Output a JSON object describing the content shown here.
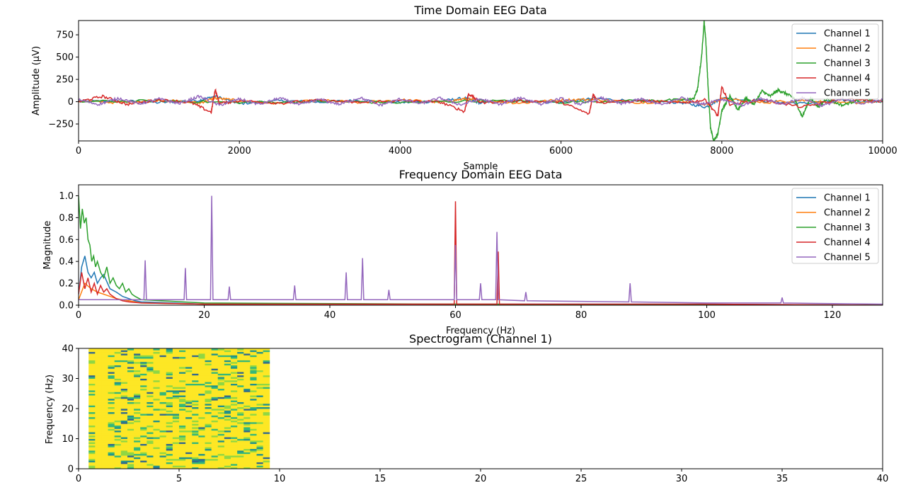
{
  "colors": {
    "channel_1": "#1f77b4",
    "channel_2": "#ff7f0e",
    "channel_3": "#2ca02c",
    "channel_4": "#d62728",
    "channel_5": "#9467bd"
  },
  "chart_data": [
    {
      "type": "line",
      "title": "Time Domain EEG Data",
      "xlabel": "Sample",
      "ylabel": "Amplitude (µV)",
      "xlim": [
        0,
        10000
      ],
      "ylim": [
        -440,
        910
      ],
      "xticks": [
        "0",
        "2000",
        "4000",
        "6000",
        "8000",
        "10000"
      ],
      "xtick_values": [
        0,
        2000,
        4000,
        6000,
        8000,
        10000
      ],
      "yticks": [
        "−250",
        "0",
        "250",
        "500",
        "750"
      ],
      "ytick_values": [
        -250,
        0,
        250,
        500,
        750
      ],
      "legend": "top-right",
      "series": [
        {
          "name": "Channel 1",
          "color": "#1f77b4",
          "x": [
            0,
            500,
            1000,
            1500,
            1700,
            2000,
            2500,
            3000,
            3500,
            4000,
            4500,
            4800,
            5000,
            5500,
            6000,
            6400,
            7000,
            7500,
            7800,
            8000,
            8500,
            9000,
            9500,
            10000
          ],
          "y": [
            0,
            10,
            -10,
            15,
            60,
            -20,
            10,
            -5,
            15,
            -10,
            5,
            40,
            -15,
            10,
            -10,
            35,
            5,
            -10,
            -60,
            40,
            10,
            -20,
            15,
            0
          ]
        },
        {
          "name": "Channel 2",
          "color": "#ff7f0e",
          "x": [
            0,
            500,
            1000,
            1500,
            1700,
            2000,
            2500,
            3000,
            3500,
            4000,
            4500,
            4800,
            5000,
            5500,
            6000,
            6400,
            7000,
            7500,
            7800,
            8000,
            8500,
            9000,
            9500,
            10000
          ],
          "y": [
            5,
            -10,
            20,
            -15,
            40,
            10,
            -20,
            15,
            -10,
            20,
            -5,
            30,
            10,
            -15,
            20,
            25,
            -10,
            15,
            -30,
            30,
            -10,
            15,
            -20,
            5
          ]
        },
        {
          "name": "Channel 3",
          "color": "#2ca02c",
          "x": [
            0,
            1000,
            2000,
            3000,
            4000,
            5000,
            6000,
            7000,
            7500,
            7650,
            7700,
            7750,
            7780,
            7800,
            7830,
            7860,
            7900,
            7950,
            8000,
            8100,
            8200,
            8300,
            8400,
            8500,
            8600,
            8700,
            8800,
            8900,
            9000,
            9100,
            9200,
            9300,
            9500,
            9700,
            10000
          ],
          "y": [
            0,
            10,
            -10,
            5,
            -10,
            10,
            -5,
            10,
            20,
            30,
            150,
            520,
            900,
            700,
            150,
            -300,
            -440,
            -360,
            -100,
            60,
            -90,
            40,
            -30,
            120,
            60,
            130,
            90,
            40,
            -170,
            40,
            -60,
            30,
            -40,
            20,
            0
          ]
        },
        {
          "name": "Channel 4",
          "color": "#d62728",
          "x": [
            0,
            300,
            600,
            1000,
            1400,
            1650,
            1700,
            1750,
            2000,
            2500,
            3000,
            3500,
            4000,
            4500,
            4800,
            4850,
            5000,
            5500,
            6000,
            6350,
            6400,
            6450,
            7000,
            7500,
            7800,
            7950,
            8000,
            8100,
            8500,
            9000,
            9500,
            10000
          ],
          "y": [
            0,
            60,
            -30,
            20,
            -10,
            -120,
            140,
            -20,
            10,
            -15,
            15,
            -10,
            10,
            -5,
            -110,
            90,
            -10,
            10,
            -5,
            -140,
            90,
            -10,
            10,
            -15,
            20,
            -160,
            160,
            -30,
            20,
            -60,
            30,
            0
          ]
        },
        {
          "name": "Channel 5",
          "color": "#9467bd",
          "x": [
            0,
            250,
            500,
            750,
            1000,
            1250,
            1500,
            1750,
            2000,
            2250,
            2500,
            2750,
            3000,
            3250,
            3500,
            3750,
            4000,
            4250,
            4500,
            4750,
            5000,
            5250,
            5500,
            5750,
            6000,
            6250,
            6500,
            6750,
            7000,
            7250,
            7500,
            7750,
            8000,
            8250,
            8500,
            8750,
            9000,
            9250,
            9500,
            9750,
            10000
          ],
          "y": [
            20,
            -30,
            40,
            -25,
            30,
            -20,
            60,
            -40,
            30,
            -30,
            40,
            -35,
            25,
            -30,
            45,
            -40,
            30,
            -20,
            40,
            -35,
            30,
            -30,
            45,
            -25,
            35,
            -30,
            40,
            -25,
            30,
            -35,
            45,
            -30,
            30,
            -40,
            35,
            -30,
            40,
            -45,
            30,
            -20,
            20
          ]
        }
      ]
    },
    {
      "type": "line",
      "title": "Frequency Domain EEG Data",
      "xlabel": "Frequency (Hz)",
      "ylabel": "Magnitude",
      "xlim": [
        0,
        128
      ],
      "ylim": [
        0,
        1.1
      ],
      "xticks": [
        "0",
        "20",
        "40",
        "60",
        "80",
        "100",
        "120"
      ],
      "xtick_values": [
        0,
        20,
        40,
        60,
        80,
        100,
        120
      ],
      "yticks": [
        "0.0",
        "0.2",
        "0.4",
        "0.6",
        "0.8",
        "1.0"
      ],
      "ytick_values": [
        0,
        0.2,
        0.4,
        0.6,
        0.8,
        1.0
      ],
      "legend": "top-right",
      "series": [
        {
          "name": "Channel 1",
          "color": "#1f77b4",
          "x": [
            0,
            0.5,
            1,
            1.5,
            2,
            2.5,
            3,
            3.5,
            4,
            5,
            6,
            7,
            8,
            9,
            10,
            15,
            20,
            40,
            60,
            80,
            100,
            128
          ],
          "y": [
            0.1,
            0.35,
            0.45,
            0.3,
            0.25,
            0.3,
            0.2,
            0.25,
            0.28,
            0.15,
            0.12,
            0.08,
            0.06,
            0.04,
            0.03,
            0.02,
            0.01,
            0.01,
            0.01,
            0.01,
            0.01,
            0.0
          ]
        },
        {
          "name": "Channel 2",
          "color": "#ff7f0e",
          "x": [
            0,
            1,
            2,
            3,
            4,
            5,
            6,
            8,
            10,
            20,
            60,
            128
          ],
          "y": [
            0.05,
            0.2,
            0.15,
            0.12,
            0.1,
            0.08,
            0.06,
            0.04,
            0.02,
            0.01,
            0.01,
            0.0
          ]
        },
        {
          "name": "Channel 3",
          "color": "#2ca02c",
          "x": [
            0,
            0.3,
            0.6,
            0.9,
            1.2,
            1.5,
            1.8,
            2.1,
            2.4,
            2.7,
            3.0,
            3.5,
            4.0,
            4.5,
            5.0,
            5.5,
            6.0,
            6.5,
            7.0,
            7.5,
            8.0,
            8.5,
            9.0,
            10,
            20,
            60,
            128
          ],
          "y": [
            1.0,
            0.7,
            0.88,
            0.75,
            0.8,
            0.6,
            0.55,
            0.4,
            0.45,
            0.35,
            0.4,
            0.3,
            0.25,
            0.35,
            0.2,
            0.25,
            0.18,
            0.15,
            0.2,
            0.12,
            0.15,
            0.1,
            0.08,
            0.05,
            0.02,
            0.01,
            0.0
          ]
        },
        {
          "name": "Channel 4",
          "color": "#d62728",
          "x": [
            0,
            0.5,
            1,
            1.5,
            2,
            2.5,
            3,
            3.5,
            4,
            4.5,
            5,
            5.5,
            6,
            7,
            8,
            10,
            20,
            59.8,
            60,
            60.2,
            66.6,
            66.8,
            67,
            80,
            100,
            128
          ],
          "y": [
            0.1,
            0.3,
            0.15,
            0.25,
            0.12,
            0.2,
            0.1,
            0.18,
            0.12,
            0.15,
            0.1,
            0.08,
            0.06,
            0.04,
            0.03,
            0.02,
            0.01,
            0.01,
            0.95,
            0.01,
            0.01,
            0.49,
            0.01,
            0.01,
            0.01,
            0.0
          ]
        },
        {
          "name": "Channel 5",
          "color": "#9467bd",
          "x": [
            0,
            5,
            10.4,
            10.6,
            10.8,
            16.8,
            17.0,
            17.2,
            21.0,
            21.2,
            21.4,
            23.8,
            24.0,
            24.2,
            34.2,
            34.4,
            34.6,
            42.4,
            42.6,
            42.8,
            45.0,
            45.2,
            45.4,
            49.2,
            49.4,
            49.6,
            59.8,
            60.0,
            60.2,
            63.8,
            64.0,
            64.2,
            66.4,
            66.6,
            66.8,
            71.0,
            71.2,
            71.4,
            87.6,
            87.8,
            88.0,
            100,
            111.8,
            112.0,
            112.2,
            128
          ],
          "y": [
            0.05,
            0.05,
            0.05,
            0.41,
            0.05,
            0.05,
            0.34,
            0.05,
            0.05,
            1.0,
            0.05,
            0.05,
            0.17,
            0.05,
            0.05,
            0.18,
            0.05,
            0.05,
            0.3,
            0.05,
            0.05,
            0.43,
            0.05,
            0.05,
            0.14,
            0.05,
            0.05,
            0.55,
            0.05,
            0.05,
            0.2,
            0.05,
            0.05,
            0.67,
            0.05,
            0.04,
            0.12,
            0.04,
            0.03,
            0.2,
            0.03,
            0.02,
            0.02,
            0.07,
            0.02,
            0.01
          ]
        }
      ]
    },
    {
      "type": "heatmap",
      "title": "Spectrogram (Channel 1)",
      "xlabel": "",
      "ylabel": "Frequency (Hz)",
      "xlim": [
        0,
        40
      ],
      "ylim": [
        0,
        40
      ],
      "xticks": [
        "0",
        "5",
        "10",
        "15",
        "20",
        "25",
        "30",
        "35",
        "40"
      ],
      "xtick_values": [
        0,
        5,
        10,
        15,
        20,
        25,
        30,
        35,
        40
      ],
      "yticks": [
        "0",
        "10",
        "20",
        "30",
        "40"
      ],
      "ytick_values": [
        0,
        10,
        20,
        30,
        40
      ],
      "time_range": [
        0.5,
        9.5
      ],
      "freq_range": [
        0,
        40
      ],
      "colormap": [
        "#440154",
        "#31688e",
        "#21918c",
        "#35b779",
        "#90d743",
        "#fde725"
      ],
      "dominant_color": "#fde725"
    }
  ]
}
